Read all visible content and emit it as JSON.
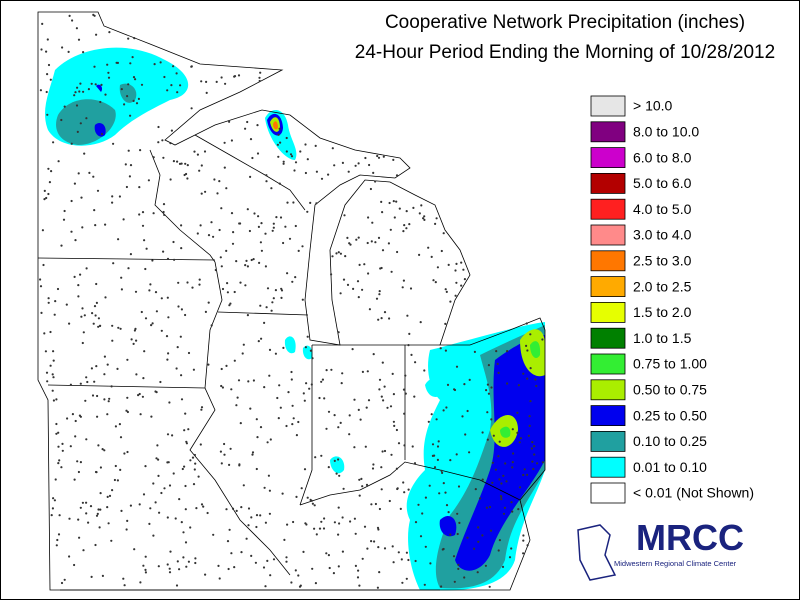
{
  "title": "Cooperative Network Precipitation (inches)",
  "subtitle": "24-Hour Period Ending the Morning of 10/28/2012",
  "legend": [
    {
      "label": "> 10.0",
      "color": "#e6e6e6"
    },
    {
      "label": "8.0 to 10.0",
      "color": "#800080"
    },
    {
      "label": "6.0 to 8.0",
      "color": "#cc00cc"
    },
    {
      "label": "5.0 to 6.0",
      "color": "#b30000"
    },
    {
      "label": "4.0 to 5.0",
      "color": "#ff2020"
    },
    {
      "label": "3.0 to 4.0",
      "color": "#ff8a8a"
    },
    {
      "label": "2.5 to 3.0",
      "color": "#ff7700"
    },
    {
      "label": "2.0 to 2.5",
      "color": "#ffaa00"
    },
    {
      "label": "1.5 to 2.0",
      "color": "#e6ff00"
    },
    {
      "label": "1.0 to 1.5",
      "color": "#008000"
    },
    {
      "label": "0.75 to 1.00",
      "color": "#33ee33"
    },
    {
      "label": "0.50 to 0.75",
      "color": "#aaee00"
    },
    {
      "label": "0.25 to 0.50",
      "color": "#0000ee"
    },
    {
      "label": "0.10 to 0.25",
      "color": "#20a0a0"
    },
    {
      "label": "0.01 to 0.10",
      "color": "#00ffff"
    },
    {
      "label": "< 0.01 (Not Shown)",
      "color": "#ffffff"
    }
  ],
  "logo": {
    "name": "MRCC",
    "caption": "Midwestern Regional Climate Center"
  }
}
